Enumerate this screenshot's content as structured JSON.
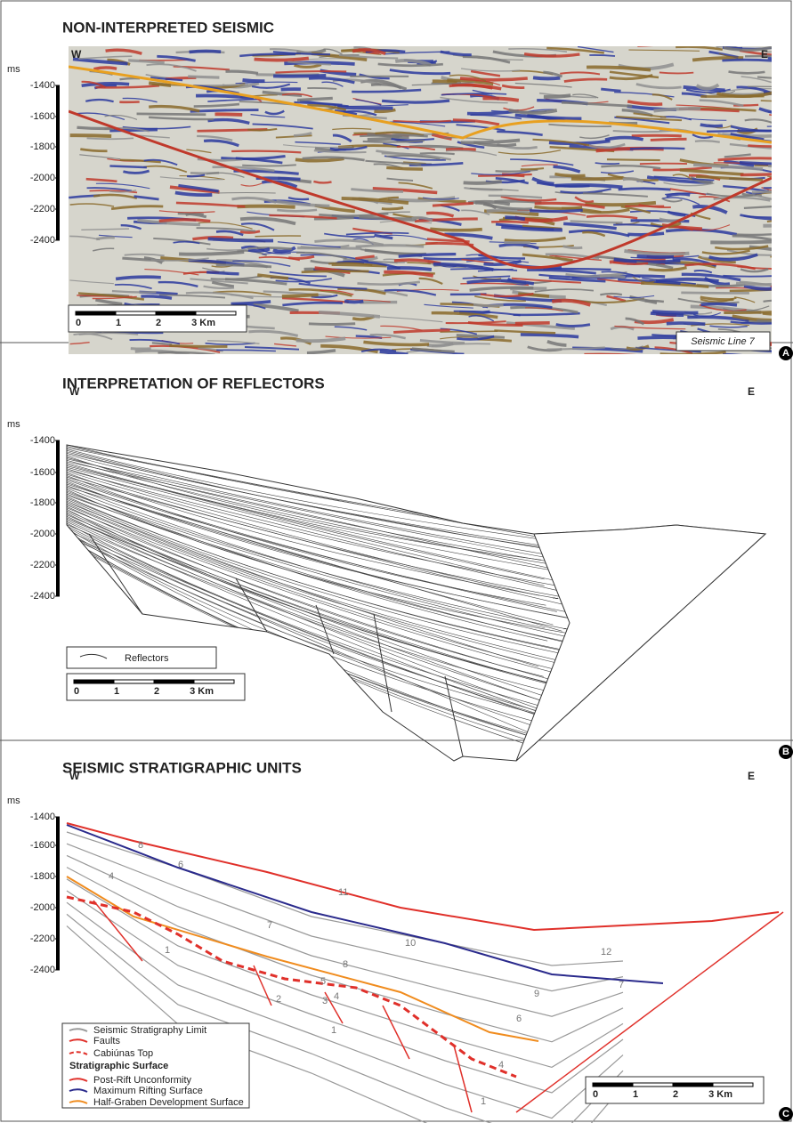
{
  "panels": [
    {
      "letter": "A",
      "title": "NON-INTERPRETED SEISMIC",
      "west": "W",
      "east": "E",
      "unit": "ms",
      "ticks": [
        "-1400",
        "-1600",
        "-1800",
        "-2000",
        "-2200",
        "-2400"
      ],
      "scale": [
        "0",
        "1",
        "2",
        "3 Km"
      ],
      "caption": "Seismic Line 7"
    },
    {
      "letter": "B",
      "title": "INTERPRETATION OF REFLECTORS",
      "west": "W",
      "east": "E",
      "unit": "ms",
      "ticks": [
        "-1400",
        "-1600",
        "-1800",
        "-2000",
        "-2200",
        "-2400"
      ],
      "scale": [
        "0",
        "1",
        "2",
        "3 Km"
      ],
      "legend": [
        "Reflectors"
      ]
    },
    {
      "letter": "C",
      "title": "SEISMIC STRATIGRAPHIC UNITS",
      "west": "W",
      "east": "E",
      "unit": "ms",
      "ticks": [
        "-1400",
        "-1600",
        "-1800",
        "-2000",
        "-2200",
        "-2400"
      ],
      "scale": [
        "0",
        "1",
        "2",
        "3 Km"
      ],
      "units": [
        "8",
        "6",
        "4",
        "11",
        "7",
        "10",
        "8",
        "5",
        "4",
        "12",
        "9",
        "7",
        "6",
        "1",
        "2",
        "3",
        "1",
        "4",
        "1"
      ],
      "legend": [
        "Seismic Stratigraphy Limit",
        "Faults",
        "Cabiúnas Top",
        "Stratigraphic Surface",
        "Post-Rift Unconformity",
        "Maximum Rifting Surface",
        "Half-Graben Development Surface"
      ]
    }
  ]
}
